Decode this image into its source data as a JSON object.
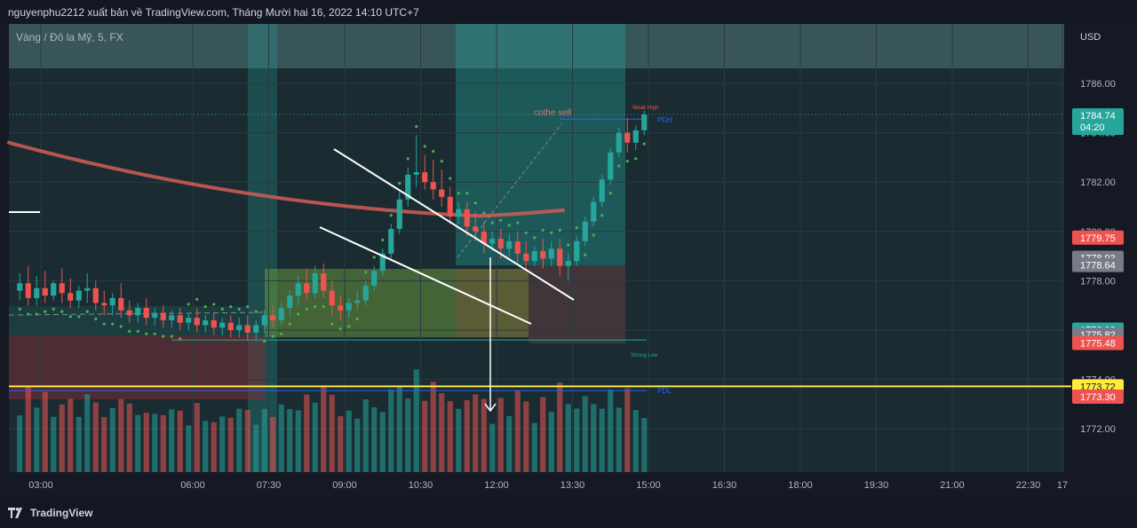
{
  "header": {
    "publish_line": "nguyenphu2212 xuất bản về TradingView.com, Tháng Mười hai 16, 2022 14:10 UTC+7"
  },
  "chart": {
    "symbol_label": "Vàng / Đô la Mỹ, 5, FX",
    "currency_label": "USD",
    "colors": {
      "background": "#151924",
      "up": "#26a69a",
      "down": "#ef5350",
      "ma": "#ca5a55",
      "psar": "#4caf50",
      "flag_lines": "#ffffff",
      "level_line": "#ffeb3b"
    },
    "annotations": {
      "weak_high": "Weak High",
      "strong_low": "Strong Low",
      "pdh": "PDH",
      "pdl": "PDL",
      "note": "cothe sell"
    },
    "price_badges": [
      {
        "price": 1784.74,
        "label": "1784.74",
        "sublabel": "04:20",
        "color": "#26a69a"
      },
      {
        "price": 1779.75,
        "label": "1779.75",
        "color": "#ef5350"
      },
      {
        "price": 1778.93,
        "label": "1778.93",
        "color": "#787b86"
      },
      {
        "price": 1778.64,
        "label": "1778.64",
        "color": "#787b86"
      },
      {
        "price": 1776.02,
        "label": "1776.02",
        "color": "#26a69a"
      },
      {
        "price": 1775.82,
        "label": "1775.82",
        "color": "#787b86"
      },
      {
        "price": 1775.48,
        "label": "1775.48",
        "color": "#ef5350"
      },
      {
        "price": 1773.72,
        "label": "1773.72",
        "color": "#ffeb3b"
      },
      {
        "price": 1773.3,
        "label": "1773.30",
        "color": "#ef5350"
      }
    ]
  },
  "chart_data": {
    "type": "candlestick",
    "title": "Vàng / Đô la Mỹ, 5, FX",
    "y_unit": "USD",
    "ylim": [
      1770.5,
      1788.5
    ],
    "y_ticks": [
      1772.0,
      1774.0,
      1776.0,
      1778.0,
      1780.0,
      1782.0,
      1784.0,
      1786.0
    ],
    "x_ticks": [
      "03:00",
      "06:00",
      "07:30",
      "09:00",
      "10:30",
      "12:00",
      "13:30",
      "15:00",
      "16:30",
      "18:00",
      "19:30",
      "21:00",
      "22:30",
      "17"
    ],
    "x_range": [
      "02:35",
      "19:45"
    ],
    "last_price": 1784.74,
    "horizontal_levels": [
      {
        "name": "PDH",
        "price": 1784.55
      },
      {
        "name": "PDL",
        "price": 1773.55
      },
      {
        "name": "Strong Low",
        "price": 1775.6
      },
      {
        "name": "level",
        "price": 1773.72
      }
    ],
    "candles": [
      {
        "t": "02:35",
        "o": 1777.6,
        "h": 1778.3,
        "c": 1777.9,
        "l": 1777.2
      },
      {
        "t": "02:45",
        "o": 1777.9,
        "h": 1778.6,
        "c": 1777.3,
        "l": 1777.0
      },
      {
        "t": "02:55",
        "o": 1777.3,
        "h": 1778.2,
        "c": 1777.7,
        "l": 1777.0
      },
      {
        "t": "03:05",
        "o": 1777.7,
        "h": 1778.4,
        "c": 1777.4,
        "l": 1777.1
      },
      {
        "t": "03:15",
        "o": 1777.4,
        "h": 1778.0,
        "c": 1777.9,
        "l": 1777.2
      },
      {
        "t": "03:25",
        "o": 1777.9,
        "h": 1778.5,
        "c": 1777.5,
        "l": 1777.1
      },
      {
        "t": "03:35",
        "o": 1777.5,
        "h": 1778.1,
        "c": 1777.2,
        "l": 1776.9
      },
      {
        "t": "03:45",
        "o": 1777.2,
        "h": 1777.8,
        "c": 1777.6,
        "l": 1776.9
      },
      {
        "t": "03:55",
        "o": 1777.6,
        "h": 1778.3,
        "c": 1777.7,
        "l": 1777.1
      },
      {
        "t": "04:05",
        "o": 1777.7,
        "h": 1778.0,
        "c": 1777.1,
        "l": 1776.8
      },
      {
        "t": "04:15",
        "o": 1777.1,
        "h": 1777.6,
        "c": 1777.0,
        "l": 1776.6
      },
      {
        "t": "04:25",
        "o": 1777.0,
        "h": 1777.5,
        "c": 1777.3,
        "l": 1776.6
      },
      {
        "t": "04:35",
        "o": 1777.3,
        "h": 1777.9,
        "c": 1776.8,
        "l": 1776.5
      },
      {
        "t": "04:45",
        "o": 1776.8,
        "h": 1777.2,
        "c": 1776.6,
        "l": 1776.3
      },
      {
        "t": "04:55",
        "o": 1776.6,
        "h": 1777.1,
        "c": 1776.9,
        "l": 1776.3
      },
      {
        "t": "05:05",
        "o": 1776.9,
        "h": 1777.3,
        "c": 1776.5,
        "l": 1776.2
      },
      {
        "t": "05:15",
        "o": 1776.5,
        "h": 1776.9,
        "c": 1776.7,
        "l": 1776.2
      },
      {
        "t": "05:25",
        "o": 1776.7,
        "h": 1777.0,
        "c": 1776.4,
        "l": 1776.1
      },
      {
        "t": "05:35",
        "o": 1776.4,
        "h": 1776.8,
        "c": 1776.6,
        "l": 1776.1
      },
      {
        "t": "05:45",
        "o": 1776.6,
        "h": 1776.9,
        "c": 1776.3,
        "l": 1776.0
      },
      {
        "t": "05:55",
        "o": 1776.3,
        "h": 1776.7,
        "c": 1776.5,
        "l": 1776.0
      },
      {
        "t": "06:05",
        "o": 1776.5,
        "h": 1776.9,
        "c": 1776.2,
        "l": 1775.9
      },
      {
        "t": "06:15",
        "o": 1776.2,
        "h": 1776.6,
        "c": 1776.4,
        "l": 1775.9
      },
      {
        "t": "06:25",
        "o": 1776.4,
        "h": 1776.7,
        "c": 1776.1,
        "l": 1775.8
      },
      {
        "t": "06:35",
        "o": 1776.1,
        "h": 1776.5,
        "c": 1776.3,
        "l": 1775.8
      },
      {
        "t": "06:45",
        "o": 1776.3,
        "h": 1776.6,
        "c": 1776.0,
        "l": 1775.7
      },
      {
        "t": "06:55",
        "o": 1776.0,
        "h": 1776.5,
        "c": 1776.2,
        "l": 1775.7
      },
      {
        "t": "07:05",
        "o": 1776.2,
        "h": 1776.6,
        "c": 1775.9,
        "l": 1775.6
      },
      {
        "t": "07:15",
        "o": 1775.9,
        "h": 1776.4,
        "c": 1776.2,
        "l": 1775.6
      },
      {
        "t": "07:25",
        "o": 1776.2,
        "h": 1776.8,
        "c": 1776.6,
        "l": 1775.9
      },
      {
        "t": "07:35",
        "o": 1776.6,
        "h": 1777.0,
        "c": 1776.4,
        "l": 1776.1
      },
      {
        "t": "07:45",
        "o": 1776.4,
        "h": 1777.1,
        "c": 1776.9,
        "l": 1776.2
      },
      {
        "t": "07:55",
        "o": 1776.9,
        "h": 1777.6,
        "c": 1777.4,
        "l": 1776.6
      },
      {
        "t": "08:05",
        "o": 1777.4,
        "h": 1778.2,
        "c": 1777.9,
        "l": 1777.0
      },
      {
        "t": "08:15",
        "o": 1777.9,
        "h": 1778.5,
        "c": 1777.5,
        "l": 1777.2
      },
      {
        "t": "08:25",
        "o": 1777.5,
        "h": 1778.6,
        "c": 1778.3,
        "l": 1777.3
      },
      {
        "t": "08:35",
        "o": 1778.3,
        "h": 1778.7,
        "c": 1777.6,
        "l": 1777.3
      },
      {
        "t": "08:45",
        "o": 1777.6,
        "h": 1778.0,
        "c": 1777.0,
        "l": 1776.6
      },
      {
        "t": "08:55",
        "o": 1777.0,
        "h": 1777.4,
        "c": 1776.8,
        "l": 1776.4
      },
      {
        "t": "09:05",
        "o": 1776.8,
        "h": 1777.3,
        "c": 1777.1,
        "l": 1776.5
      },
      {
        "t": "09:15",
        "o": 1777.1,
        "h": 1777.6,
        "c": 1777.2,
        "l": 1776.8
      },
      {
        "t": "09:25",
        "o": 1777.2,
        "h": 1778.0,
        "c": 1777.8,
        "l": 1777.0
      },
      {
        "t": "09:35",
        "o": 1777.8,
        "h": 1778.6,
        "c": 1778.4,
        "l": 1777.6
      },
      {
        "t": "09:45",
        "o": 1778.4,
        "h": 1779.3,
        "c": 1779.1,
        "l": 1778.2
      },
      {
        "t": "09:55",
        "o": 1779.1,
        "h": 1780.3,
        "c": 1780.1,
        "l": 1778.9
      },
      {
        "t": "10:05",
        "o": 1780.1,
        "h": 1781.6,
        "c": 1781.3,
        "l": 1779.9
      },
      {
        "t": "10:15",
        "o": 1781.3,
        "h": 1782.6,
        "c": 1782.3,
        "l": 1781.0
      },
      {
        "t": "10:25",
        "o": 1782.3,
        "h": 1783.9,
        "c": 1782.4,
        "l": 1781.8
      },
      {
        "t": "10:35",
        "o": 1782.4,
        "h": 1783.1,
        "c": 1782.0,
        "l": 1781.7
      },
      {
        "t": "10:45",
        "o": 1782.0,
        "h": 1782.9,
        "c": 1781.7,
        "l": 1781.3
      },
      {
        "t": "10:55",
        "o": 1781.7,
        "h": 1782.5,
        "c": 1781.4,
        "l": 1781.0
      },
      {
        "t": "11:05",
        "o": 1781.4,
        "h": 1781.8,
        "c": 1780.6,
        "l": 1780.3
      },
      {
        "t": "11:15",
        "o": 1780.6,
        "h": 1781.2,
        "c": 1780.9,
        "l": 1780.3
      },
      {
        "t": "11:25",
        "o": 1780.9,
        "h": 1781.2,
        "c": 1780.2,
        "l": 1779.8
      },
      {
        "t": "11:35",
        "o": 1780.2,
        "h": 1780.8,
        "c": 1780.0,
        "l": 1779.6
      },
      {
        "t": "11:45",
        "o": 1780.0,
        "h": 1780.4,
        "c": 1779.5,
        "l": 1779.1
      },
      {
        "t": "11:55",
        "o": 1779.5,
        "h": 1780.0,
        "c": 1779.7,
        "l": 1779.2
      },
      {
        "t": "12:05",
        "o": 1779.7,
        "h": 1780.1,
        "c": 1779.3,
        "l": 1778.9
      },
      {
        "t": "12:15",
        "o": 1779.3,
        "h": 1779.9,
        "c": 1779.6,
        "l": 1779.0
      },
      {
        "t": "12:25",
        "o": 1779.6,
        "h": 1780.0,
        "c": 1779.1,
        "l": 1778.7
      },
      {
        "t": "12:35",
        "o": 1779.1,
        "h": 1779.6,
        "c": 1778.8,
        "l": 1778.4
      },
      {
        "t": "12:45",
        "o": 1778.8,
        "h": 1779.4,
        "c": 1779.2,
        "l": 1778.6
      },
      {
        "t": "12:55",
        "o": 1779.2,
        "h": 1779.7,
        "c": 1778.9,
        "l": 1778.5
      },
      {
        "t": "13:05",
        "o": 1778.9,
        "h": 1779.6,
        "c": 1779.3,
        "l": 1778.6
      },
      {
        "t": "13:15",
        "o": 1779.3,
        "h": 1779.7,
        "c": 1778.6,
        "l": 1778.2
      },
      {
        "t": "13:25",
        "o": 1778.6,
        "h": 1779.1,
        "c": 1778.8,
        "l": 1778.0
      },
      {
        "t": "13:35",
        "o": 1778.8,
        "h": 1779.8,
        "c": 1779.6,
        "l": 1778.6
      },
      {
        "t": "13:45",
        "o": 1779.6,
        "h": 1780.6,
        "c": 1780.4,
        "l": 1779.4
      },
      {
        "t": "13:55",
        "o": 1780.4,
        "h": 1781.4,
        "c": 1781.2,
        "l": 1780.2
      },
      {
        "t": "14:05",
        "o": 1781.2,
        "h": 1782.3,
        "c": 1782.1,
        "l": 1781.0
      },
      {
        "t": "14:15",
        "o": 1782.1,
        "h": 1783.4,
        "c": 1783.2,
        "l": 1781.9
      },
      {
        "t": "14:25",
        "o": 1783.2,
        "h": 1784.2,
        "c": 1784.0,
        "l": 1783.0
      },
      {
        "t": "14:35",
        "o": 1784.0,
        "h": 1784.6,
        "c": 1783.6,
        "l": 1783.2
      },
      {
        "t": "14:45",
        "o": 1783.6,
        "h": 1784.3,
        "c": 1784.1,
        "l": 1783.3
      },
      {
        "t": "14:55",
        "o": 1784.1,
        "h": 1784.9,
        "c": 1784.74,
        "l": 1783.9
      }
    ]
  }
}
